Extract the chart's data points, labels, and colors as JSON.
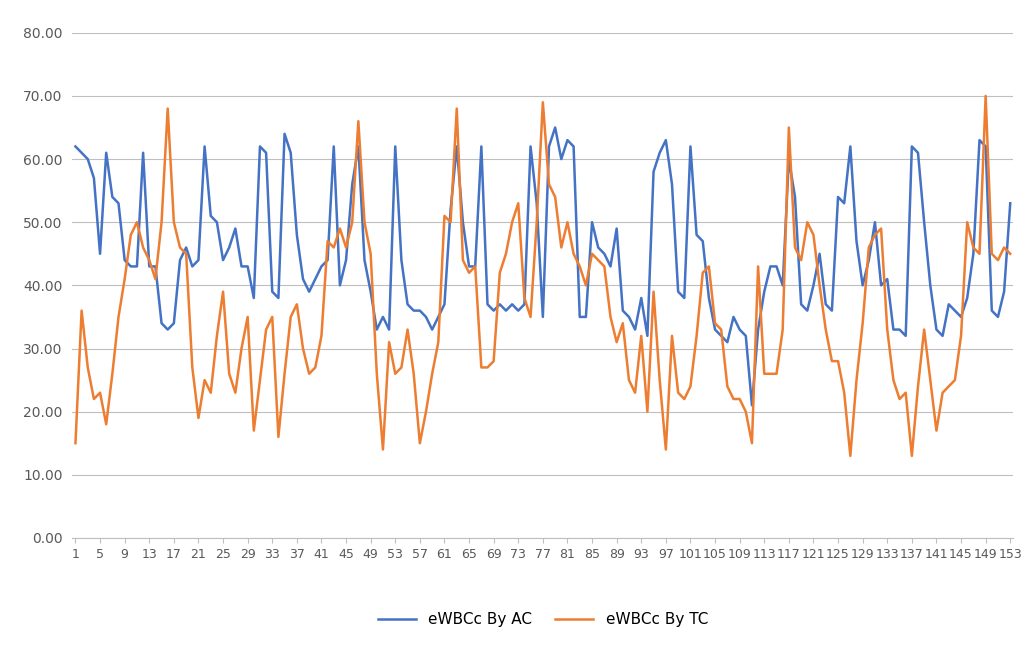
{
  "ac": [
    62,
    61,
    60,
    57,
    45,
    61,
    54,
    53,
    44,
    43,
    43,
    61,
    43,
    43,
    34,
    33,
    34,
    44,
    46,
    43,
    44,
    62,
    51,
    50,
    44,
    46,
    49,
    43,
    43,
    38,
    62,
    61,
    39,
    38,
    64,
    61,
    48,
    41,
    39,
    41,
    43,
    44,
    62,
    40,
    44,
    56,
    62,
    44,
    39,
    33,
    35,
    33,
    62,
    44,
    37,
    36,
    36,
    35,
    33,
    35,
    37,
    52,
    62,
    50,
    43,
    43,
    62,
    37,
    36,
    37,
    36,
    37,
    36,
    37,
    62,
    53,
    35,
    62,
    65,
    60,
    63,
    62,
    35,
    35,
    50,
    46,
    45,
    43,
    49,
    36,
    35,
    33,
    38,
    32,
    58,
    61,
    63,
    56,
    39,
    38,
    62,
    48,
    47,
    38,
    33,
    32,
    31,
    35,
    33,
    32,
    21,
    33,
    39,
    43,
    43,
    40,
    60,
    54,
    37,
    36,
    40,
    45,
    37,
    36,
    54,
    53,
    62,
    47,
    40,
    44,
    50,
    40,
    41,
    33,
    33,
    32,
    62,
    61,
    50,
    40,
    33,
    32,
    37,
    36,
    35,
    38,
    45,
    63,
    62,
    36,
    35,
    39,
    53
  ],
  "tc": [
    15,
    36,
    27,
    22,
    23,
    18,
    26,
    35,
    41,
    48,
    50,
    46,
    44,
    41,
    50,
    68,
    50,
    46,
    45,
    27,
    19,
    25,
    23,
    32,
    39,
    26,
    23,
    30,
    35,
    17,
    25,
    33,
    35,
    16,
    26,
    35,
    37,
    30,
    26,
    27,
    32,
    47,
    46,
    49,
    46,
    50,
    66,
    50,
    45,
    26,
    14,
    31,
    26,
    27,
    33,
    26,
    15,
    20,
    26,
    31,
    51,
    50,
    68,
    44,
    42,
    43,
    27,
    27,
    28,
    42,
    45,
    50,
    53,
    38,
    35,
    50,
    69,
    56,
    54,
    46,
    50,
    45,
    43,
    40,
    45,
    44,
    43,
    35,
    31,
    34,
    25,
    23,
    32,
    20,
    39,
    25,
    14,
    32,
    23,
    22,
    24,
    32,
    42,
    43,
    34,
    33,
    24,
    22,
    22,
    20,
    15,
    43,
    26,
    26,
    26,
    33,
    65,
    46,
    44,
    50,
    48,
    40,
    33,
    28,
    28,
    23,
    13,
    25,
    34,
    46,
    48,
    49,
    33,
    25,
    22,
    23,
    13,
    24,
    33,
    25,
    17,
    23,
    24,
    25,
    32,
    50,
    46,
    45,
    70,
    45,
    44,
    46,
    45
  ],
  "ac_color": "#4472C4",
  "tc_color": "#ED7D31",
  "ylim": [
    0,
    80
  ],
  "yticks": [
    0.0,
    10.0,
    20.0,
    30.0,
    40.0,
    50.0,
    60.0,
    70.0,
    80.0
  ],
  "xtick_step": 4,
  "legend_labels": [
    "eWBCc By AC",
    "eWBCc By TC"
  ],
  "background_color": "#ffffff",
  "grid_color": "#bfbfbf",
  "line_width": 1.8
}
